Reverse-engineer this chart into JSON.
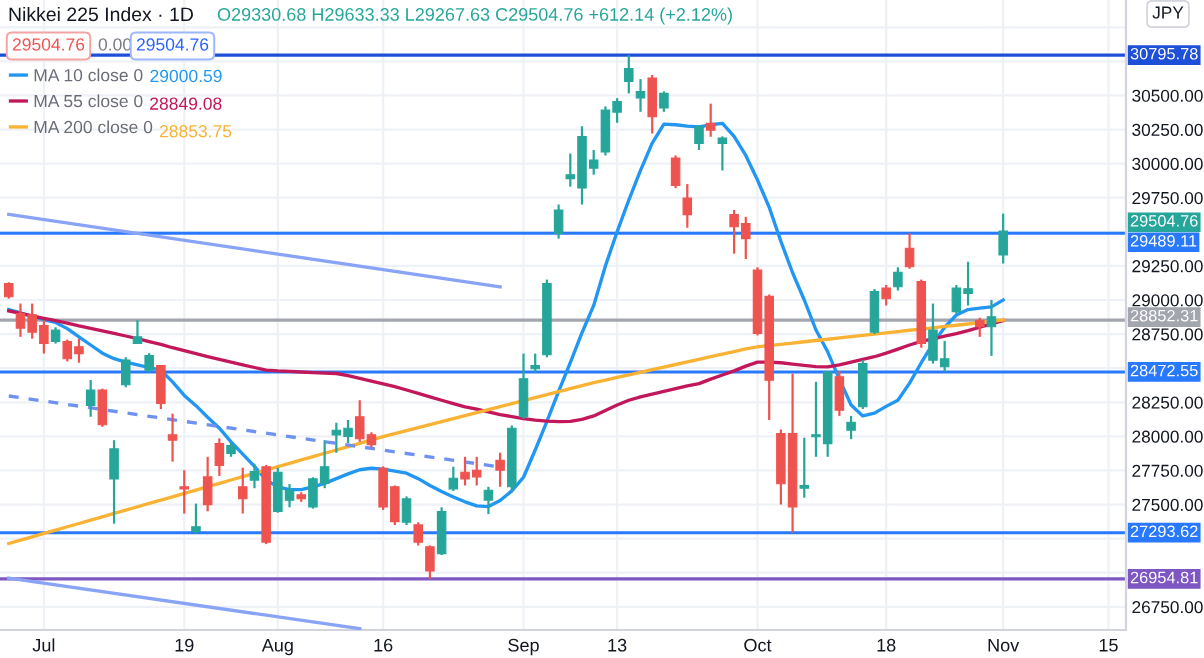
{
  "chart_data": {
    "type": "candlestick",
    "title": "Nikkei 225 Index · 1D",
    "ylabel": "JPY",
    "legend": "top left",
    "grid": true,
    "categories": [
      null,
      null,
      null,
      "Jul",
      null,
      null,
      null,
      null,
      null,
      null,
      null,
      null,
      null,
      null,
      null,
      "19",
      null,
      null,
      null,
      null,
      null,
      null,
      null,
      "Aug",
      null,
      null,
      null,
      null,
      null,
      null,
      null,
      null,
      "16",
      null,
      null,
      null,
      null,
      null,
      null,
      null,
      null,
      null,
      null,
      null,
      "Sep",
      null,
      null,
      null,
      null,
      null,
      null,
      null,
      "13",
      null,
      null,
      null,
      null,
      null,
      null,
      null,
      null,
      null,
      null,
      null,
      "Oct",
      null,
      null,
      null,
      null,
      null,
      null,
      null,
      null,
      null,
      null,
      "18",
      null,
      null,
      null,
      null,
      null,
      null,
      null,
      null,
      null,
      "Nov",
      null,
      null,
      null,
      null,
      null,
      null,
      null,
      null,
      "15",
      null
    ],
    "ohlc": [
      [
        29121,
        29130,
        29010,
        29024
      ],
      [
        28901,
        28974,
        28730,
        28794
      ],
      [
        28892,
        28974,
        28716,
        28764
      ],
      [
        28813,
        28852,
        28607,
        28681
      ],
      [
        28696,
        28800,
        28680,
        28779
      ],
      [
        28696,
        28710,
        28550,
        28569
      ],
      [
        28657,
        28716,
        28540,
        28607
      ],
      [
        28226,
        28413,
        28144,
        28339
      ],
      [
        28339,
        28350,
        28070,
        28085
      ],
      [
        27688,
        27972,
        27360,
        27908
      ],
      [
        28378,
        28580,
        28360,
        28559
      ],
      [
        28681,
        28852,
        28681,
        28730
      ],
      [
        28486,
        28610,
        28470,
        28593
      ],
      [
        28520,
        28520,
        28200,
        28241
      ],
      [
        28011,
        28167,
        27815,
        27972
      ],
      [
        27630,
        27752,
        27434,
        27615
      ],
      [
        27302,
        27507,
        27287,
        27337
      ],
      [
        27703,
        27850,
        27450,
        27498
      ],
      [
        27947,
        27985,
        27710,
        27786
      ],
      [
        27874,
        27960,
        27850,
        27932
      ],
      [
        27630,
        27770,
        27434,
        27542
      ],
      [
        27679,
        27800,
        27620,
        27742
      ],
      [
        27777,
        27790,
        27210,
        27224
      ],
      [
        27449,
        27770,
        27440,
        27737
      ],
      [
        27532,
        27650,
        27480,
        27605
      ],
      [
        27571,
        27590,
        27520,
        27542
      ],
      [
        27483,
        27700,
        27470,
        27688
      ],
      [
        27654,
        27972,
        27620,
        27777
      ],
      [
        28011,
        28100,
        27880,
        28045
      ],
      [
        28000,
        28120,
        27950,
        28060
      ],
      [
        28144,
        28265,
        27960,
        27982
      ],
      [
        28011,
        28030,
        27920,
        27938
      ],
      [
        27766,
        27780,
        27460,
        27483
      ],
      [
        27630,
        27640,
        27350,
        27375
      ],
      [
        27371,
        27560,
        27350,
        27542
      ],
      [
        27351,
        27370,
        27200,
        27224
      ],
      [
        27190,
        27200,
        26954.81,
        27013
      ],
      [
        27140,
        27480,
        27130,
        27448
      ],
      [
        27615,
        27777,
        27600,
        27693
      ],
      [
        27737,
        27850,
        27640,
        27688
      ],
      [
        27752,
        27850,
        27640,
        27703
      ],
      [
        27532,
        27630,
        27430,
        27605
      ],
      [
        27825,
        27880,
        27630,
        27752
      ],
      [
        27630,
        28080,
        27600,
        28060
      ],
      [
        28144,
        28607,
        28130,
        28422
      ],
      [
        28496,
        28607,
        28470,
        28520
      ],
      [
        28598,
        29150,
        28580,
        29121
      ],
      [
        29488,
        29700,
        29450,
        29659
      ],
      [
        29890,
        30074,
        29831,
        29919
      ],
      [
        29821,
        30274,
        29700,
        30198
      ],
      [
        29967,
        30100,
        29919,
        30026
      ],
      [
        30085,
        30420,
        30060,
        30393
      ],
      [
        30378,
        30480,
        30300,
        30456
      ],
      [
        30603,
        30795.78,
        30515,
        30697
      ],
      [
        30481,
        30620,
        30380,
        30529
      ],
      [
        30628,
        30650,
        30221,
        30344
      ],
      [
        30408,
        30530,
        30380,
        30515
      ],
      [
        30041,
        30060,
        29820,
        29840
      ],
      [
        29747,
        29850,
        29530,
        29626
      ],
      [
        30148,
        30280,
        30100,
        30271
      ],
      [
        30295,
        30440,
        30197,
        30246
      ],
      [
        30148,
        30200,
        29950,
        30187
      ],
      [
        29626,
        29660,
        29340,
        29537
      ],
      [
        29561,
        29610,
        29300,
        29450
      ],
      [
        29219,
        29240,
        28740,
        28754
      ],
      [
        29028,
        29040,
        28120,
        28412
      ],
      [
        28020,
        28050,
        27500,
        27653
      ],
      [
        28020,
        28460,
        27293.62,
        27483
      ],
      [
        27620,
        27990,
        27550,
        27640
      ],
      [
        27997,
        28400,
        27850,
        28012
      ],
      [
        27947,
        28480,
        27850,
        28471
      ],
      [
        28437,
        28480,
        28150,
        28192
      ],
      [
        28045,
        28150,
        27980,
        28104
      ],
      [
        28217,
        28560,
        28200,
        28534
      ],
      [
        28764,
        29080,
        28750,
        29062
      ],
      [
        29087,
        29110,
        28960,
        29009
      ],
      [
        29097,
        29240,
        29070,
        29204
      ],
      [
        29380,
        29489.11,
        29229,
        29244
      ],
      [
        29136,
        29150,
        28650,
        28681
      ],
      [
        28559,
        28974,
        28534,
        28779
      ],
      [
        28510,
        28700,
        28472.55,
        28569
      ],
      [
        28915,
        29110,
        28900,
        29087
      ],
      [
        29048,
        29280,
        28960,
        29083
      ],
      [
        28852,
        28870,
        28730,
        28804
      ],
      [
        28804,
        29000,
        28590,
        28877
      ],
      [
        29330.68,
        29633.33,
        29267.63,
        29504.76
      ],
      null,
      null,
      null,
      null,
      null,
      null,
      null,
      null,
      null,
      null
    ],
    "colors": [
      "#ef5350",
      "#ef5350",
      "#ef5350",
      "#ef5350",
      "#26a69a",
      "#ef5350",
      "#ef5350",
      "#26a69a",
      "#ef5350",
      "#26a69a",
      "#26a69a",
      "#26a69a",
      "#26a69a",
      "#ef5350",
      "#ef5350",
      "#ef5350",
      "#26a69a",
      "#ef5350",
      "#ef5350",
      "#26a69a",
      "#ef5350",
      "#26a69a",
      "#ef5350",
      "#26a69a",
      "#26a69a",
      "#ef5350",
      "#26a69a",
      "#26a69a",
      "#26a69a",
      "#26a69a",
      "#ef5350",
      "#ef5350",
      "#ef5350",
      "#ef5350",
      "#26a69a",
      "#ef5350",
      "#ef5350",
      "#26a69a",
      "#26a69a",
      "#ef5350",
      "#ef5350",
      "#26a69a",
      "#ef5350",
      "#26a69a",
      "#26a69a",
      "#26a69a",
      "#26a69a",
      "#26a69a",
      "#26a69a",
      "#26a69a",
      "#26a69a",
      "#26a69a",
      "#26a69a",
      "#26a69a",
      "#26a69a",
      "#ef5350",
      "#26a69a",
      "#ef5350",
      "#ef5350",
      "#26a69a",
      "#ef5350",
      "#26a69a",
      "#ef5350",
      "#ef5350",
      "#ef5350",
      "#ef5350",
      "#ef5350",
      "#ef5350",
      "#26a69a",
      "#26a69a",
      "#26a69a",
      "#ef5350",
      "#26a69a",
      "#26a69a",
      "#26a69a",
      "#ef5350",
      "#26a69a",
      "#ef5350",
      "#ef5350",
      "#26a69a",
      "#26a69a",
      "#26a69a",
      "#26a69a",
      "#ef5350",
      "#26a69a",
      "#26a69a",
      null,
      null,
      null,
      null,
      null,
      null,
      null,
      null,
      null,
      null
    ],
    "series": [
      {
        "type": "line",
        "name": "MA 10 close 0",
        "color": "#2196f3",
        "values": [
          28930,
          28905,
          28880,
          28855,
          28835,
          28790,
          28730,
          28670,
          28610,
          28570,
          28545,
          28525,
          28505,
          28486,
          28400,
          28300,
          28225,
          28140,
          28060,
          27960,
          27870,
          27780,
          27680,
          27630,
          27610,
          27610,
          27630,
          27655,
          27690,
          27725,
          27755,
          27766,
          27760,
          27745,
          27730,
          27690,
          27640,
          27595,
          27555,
          27520,
          27490,
          27485,
          27530,
          27600,
          27700,
          27900,
          28110,
          28330,
          28540,
          28760,
          28960,
          29250,
          29500,
          29733,
          29950,
          30150,
          30290,
          30285,
          30275,
          30270,
          30285,
          30295,
          30200,
          30060,
          29880,
          29680,
          29430,
          29200,
          29000,
          28780,
          28620,
          28420,
          28230,
          28150,
          28170,
          28220,
          28265,
          28390,
          28540,
          28680,
          28800,
          28890,
          28930,
          28940,
          28950,
          29000.59,
          null,
          null,
          null,
          null,
          null,
          null,
          null,
          null,
          null,
          null
        ]
      },
      {
        "type": "line",
        "name": "MA 55 close 0",
        "color": "#c2185b",
        "values": [
          28920,
          28902,
          28884,
          28866,
          28848,
          28830,
          28810,
          28792,
          28774,
          28756,
          28736,
          28716,
          28695,
          28675,
          28650,
          28628,
          28607,
          28585,
          28565,
          28545,
          28525,
          28505,
          28486,
          28480,
          28476,
          28472,
          28468,
          28464,
          28461,
          28445,
          28425,
          28405,
          28385,
          28364,
          28340,
          28315,
          28290,
          28265,
          28240,
          28217,
          28200,
          28180,
          28160,
          28145,
          28130,
          28119,
          28112,
          28108,
          28110,
          28125,
          28150,
          28190,
          28230,
          28265,
          28290,
          28310,
          28330,
          28350,
          28370,
          28387,
          28420,
          28450,
          28480,
          28515,
          28544,
          28545,
          28540,
          28530,
          28520,
          28512,
          28510,
          28525,
          28545,
          28565,
          28584,
          28610,
          28640,
          28670,
          28696,
          28715,
          28735,
          28754,
          28775,
          28800,
          28825,
          28849.08,
          null,
          null,
          null,
          null,
          null,
          null,
          null,
          null,
          null,
          null
        ]
      },
      {
        "type": "line",
        "name": "MA 200 close 0",
        "color": "#f9b233",
        "values": [
          27214,
          27239,
          27263,
          27288,
          27312,
          27337,
          27361,
          27386,
          27410,
          27435,
          27459,
          27484,
          27508,
          27533,
          27557,
          27582,
          27606,
          27631,
          27655,
          27680,
          27704,
          27729,
          27753,
          27778,
          27802,
          27827,
          27851,
          27876,
          27900,
          27925,
          27949,
          27974,
          27998,
          28020,
          28042,
          28064,
          28086,
          28108,
          28130,
          28152,
          28174,
          28196,
          28218,
          28240,
          28262,
          28284,
          28306,
          28328,
          28350,
          28372,
          28394,
          28413,
          28432,
          28451,
          28470,
          28489,
          28508,
          28527,
          28546,
          28565,
          28584,
          28603,
          28622,
          28641,
          28657,
          28666,
          28675,
          28684,
          28694,
          28703,
          28712,
          28722,
          28731,
          28740,
          28750,
          28759,
          28768,
          28778,
          28787,
          28796,
          28806,
          28815,
          28824,
          28834,
          28843,
          28853.75,
          null,
          null,
          null,
          null,
          null,
          null,
          null,
          null,
          null,
          null
        ]
      },
      {
        "type": "line",
        "color": "#89a3f6",
        "values": [
          29628,
          null,
          null,
          null,
          null,
          null,
          null,
          null,
          null,
          null,
          null,
          null,
          null,
          null,
          null,
          null,
          null,
          null,
          null,
          null,
          null,
          null,
          null,
          null,
          null,
          null,
          null,
          null,
          null,
          null,
          null,
          null,
          null,
          null,
          null,
          null,
          null,
          null,
          null,
          null,
          null,
          null,
          29096,
          null,
          null,
          null,
          null,
          null,
          null,
          null,
          null,
          null,
          null,
          null,
          null,
          null,
          null,
          null,
          null,
          null,
          null,
          null,
          null,
          null,
          null,
          null,
          null,
          null,
          null,
          null,
          null,
          null,
          null,
          null,
          null,
          null,
          null,
          null,
          null,
          null,
          null,
          null,
          null,
          null,
          null,
          null,
          null,
          null,
          null,
          null,
          null,
          null,
          null,
          null,
          null,
          null
        ]
      },
      {
        "type": "line",
        "color": "#6f92f2",
        "line_style": "dashed",
        "values": [
          28296,
          null,
          null,
          null,
          null,
          null,
          null,
          null,
          null,
          null,
          null,
          null,
          null,
          null,
          null,
          null,
          null,
          null,
          null,
          null,
          null,
          null,
          null,
          null,
          null,
          null,
          null,
          null,
          null,
          null,
          null,
          null,
          null,
          null,
          null,
          null,
          null,
          null,
          null,
          null,
          null,
          null,
          27775,
          null,
          null,
          null,
          null,
          null,
          null,
          null,
          null,
          null,
          null,
          null,
          null,
          null,
          null,
          null,
          null,
          null,
          null,
          null,
          null,
          null,
          null,
          null,
          null,
          null,
          null,
          null,
          null,
          null,
          null,
          null,
          null,
          null,
          null,
          null,
          null,
          null,
          null,
          null,
          null,
          null,
          null,
          null,
          null,
          null,
          null,
          null,
          null,
          null,
          null,
          null,
          null,
          null
        ]
      },
      {
        "type": "line",
        "color": "#89a3f6",
        "values": [
          26960,
          null,
          null,
          null,
          null,
          null,
          null,
          null,
          null,
          null,
          null,
          null,
          null,
          null,
          null,
          null,
          null,
          null,
          null,
          null,
          null,
          null,
          null,
          null,
          null,
          null,
          null,
          null,
          null,
          null,
          26590,
          null,
          null,
          null,
          null,
          null,
          null,
          null,
          null,
          null,
          null,
          null,
          null,
          null,
          null,
          null,
          null,
          null,
          null,
          null,
          null,
          null,
          null,
          null,
          null,
          null,
          null,
          null,
          null,
          null,
          null,
          null,
          null,
          null,
          null,
          null,
          null,
          null,
          null,
          null,
          null,
          null,
          null,
          null,
          null,
          null,
          null,
          null,
          null,
          null,
          null,
          null,
          null,
          null,
          null,
          null,
          null,
          null,
          null,
          null,
          null,
          null,
          null,
          null,
          null,
          null
        ]
      }
    ],
    "ylim": [
      26580,
      31200
    ],
    "yticks": [
      {
        "value": 26750,
        "label": "26750.00"
      },
      {
        "value": 27000,
        "label": null
      },
      {
        "value": 27250,
        "label": null
      },
      {
        "value": 27500,
        "label": "27500.00"
      },
      {
        "value": 27750,
        "label": "27750.00"
      },
      {
        "value": 28000,
        "label": "28000.00"
      },
      {
        "value": 28250,
        "label": "28250.00"
      },
      {
        "value": 28500,
        "label": null
      },
      {
        "value": 28750,
        "label": "28750.00"
      },
      {
        "value": 29000,
        "label": "29000.00"
      },
      {
        "value": 29250,
        "label": "29250.00"
      },
      {
        "value": 29500,
        "label": null
      },
      {
        "value": 29750,
        "label": "29750.00"
      },
      {
        "value": 30000,
        "label": "30000.00"
      },
      {
        "value": 30250,
        "label": "30250.00"
      },
      {
        "value": 30500,
        "label": "30500.00"
      },
      {
        "value": 30750,
        "label": null
      },
      {
        "value": 31000,
        "label": null
      }
    ],
    "ref_lines": [
      {
        "axis": "y",
        "value": 30795.78,
        "label": "30795.78",
        "color": "#1e4fd8"
      },
      {
        "axis": "y",
        "value": 29489.11,
        "label": "29489.11",
        "color": "#2979ff"
      },
      {
        "axis": "y",
        "value": 28852.31,
        "label": "28852.31",
        "color": "#a3a6af"
      },
      {
        "axis": "y",
        "value": 28472.55,
        "label": "28472.55",
        "color": "#2979ff"
      },
      {
        "axis": "y",
        "value": 27293.62,
        "label": "27293.62",
        "color": "#2979ff"
      },
      {
        "axis": "y",
        "value": 26954.81,
        "label": "26954.81",
        "color": "#7e57c2"
      }
    ],
    "annotations": [
      "O29330.68 H29633.33 L29267.63 C29504.76 +612.14 (+2.12%)",
      "29504.76",
      "0.00",
      "29504.76",
      "29000.59",
      "28849.08",
      "28853.75",
      "29504.76"
    ]
  }
}
